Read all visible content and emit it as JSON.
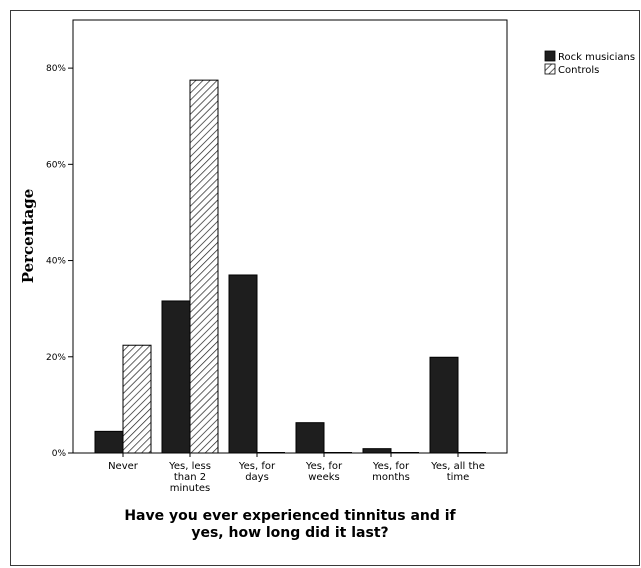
{
  "chart_data": {
    "type": "bar",
    "title": "",
    "xlabel": "Have you ever experienced tinnitus and if yes, how long did it last?",
    "xlabel_lines": [
      "Have you ever experienced tinnitus and if",
      "yes, how long did it last?"
    ],
    "ylabel": "Percentage",
    "ylim": [
      0,
      90
    ],
    "yticks": [
      0,
      20,
      40,
      60,
      80
    ],
    "ytick_labels": [
      "0%",
      "20%",
      "40%",
      "60%",
      "80%"
    ],
    "grid": false,
    "legend_position": "top-right (outside plot)",
    "categories": [
      "Never",
      "Yes, less than 2 minutes",
      "Yes, for days",
      "Yes, for weeks",
      "Yes, for months",
      "Yes, all the time"
    ],
    "category_label_lines": [
      [
        "Never"
      ],
      [
        "Yes, less",
        "than 2",
        "minutes"
      ],
      [
        "Yes, for",
        "days"
      ],
      [
        "Yes, for",
        "weeks"
      ],
      [
        "Yes, for",
        "months"
      ],
      [
        "Yes, all the",
        "time"
      ]
    ],
    "series": [
      {
        "name": "Rock musicians",
        "values": [
          4.5,
          31.6,
          37.0,
          6.3,
          0.9,
          19.9
        ],
        "fill": "#1e1e1e",
        "pattern": "solid"
      },
      {
        "name": "Controls",
        "values": [
          22.4,
          77.5,
          0,
          0,
          0,
          0
        ],
        "fill": "#ffffff",
        "pattern": "diagonal-hatch"
      }
    ]
  }
}
